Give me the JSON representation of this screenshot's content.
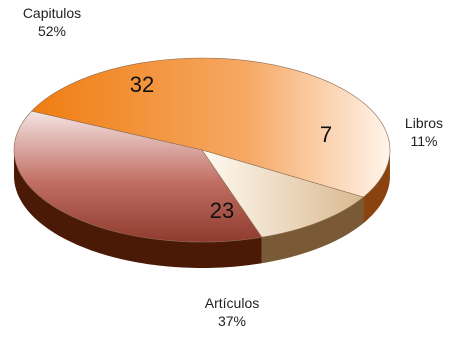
{
  "chart_data": {
    "type": "pie",
    "style": "3d-exploded-none",
    "slices": [
      {
        "label": "Capitulos",
        "value": 32,
        "percent": "52%",
        "color": "#f08a2c",
        "side_color": "#8a4310"
      },
      {
        "label": "Libros",
        "value": 7,
        "percent": "11%",
        "color": "#dcc09a",
        "side_color": "#7a5a36"
      },
      {
        "label": "Artículos",
        "value": 23,
        "percent": "37%",
        "color": "#b5584c",
        "side_color": "#4a1a06"
      }
    ],
    "legend": "none"
  }
}
